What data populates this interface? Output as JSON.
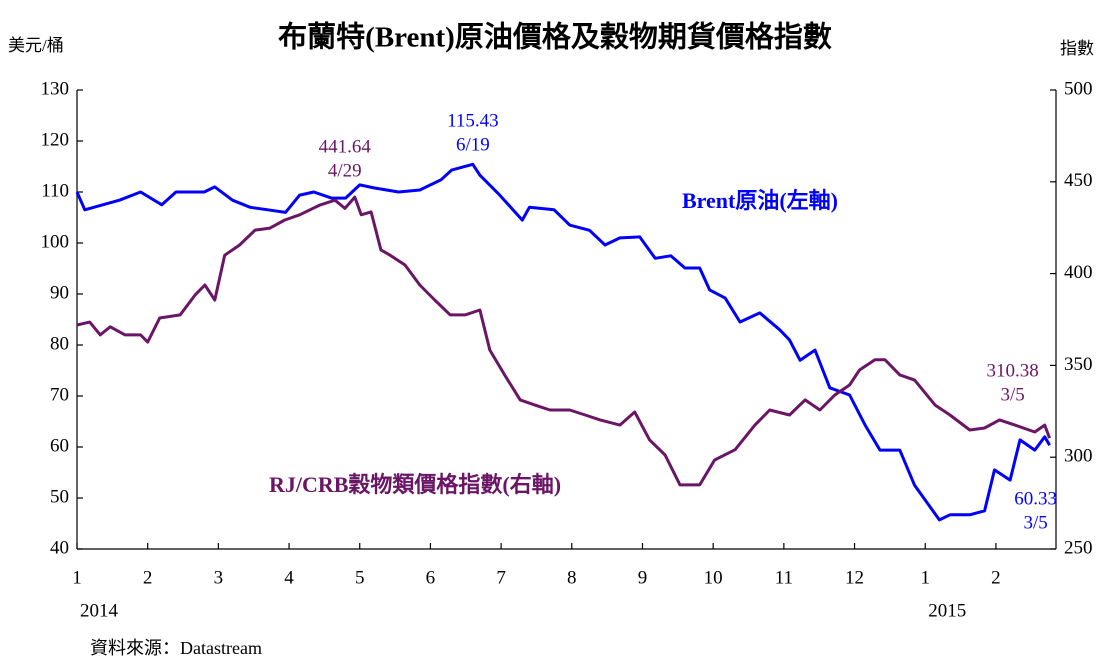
{
  "chart_data": {
    "type": "line",
    "title": "布蘭特(Brent)原油價格及穀物期貨價格指數",
    "y_axis_label": "美元/桶",
    "y2_axis_label": "指數",
    "source": "資料來源：Datastream",
    "x": [
      0,
      0.11,
      0.6,
      0.9,
      1.2,
      1.4,
      1.8,
      1.95,
      2.2,
      2.45,
      2.7,
      2.95,
      3.15,
      3.35,
      3.6,
      3.8,
      4.0,
      4.2,
      4.55,
      4.85,
      5.15,
      5.3,
      5.6,
      5.7,
      5.98,
      6.3,
      6.4,
      6.75,
      6.97,
      7.25,
      7.47,
      7.68,
      7.96,
      8.18,
      8.4,
      8.6,
      8.81,
      8.95,
      9.17,
      9.38,
      9.66,
      9.94,
      10.08,
      10.23,
      10.44,
      10.65,
      10.93,
      11.15,
      11.36,
      11.64,
      11.85,
      12.2,
      12.35,
      12.63,
      12.84,
      12.98,
      13.2,
      13.34,
      13.55,
      13.69,
      13.76
    ],
    "series": [
      {
        "name": "Brent原油(左軸)",
        "color": "#0000ff",
        "axis": "y",
        "x": [
          0,
          0.11,
          0.6,
          0.9,
          1.2,
          1.4,
          1.8,
          1.95,
          2.2,
          2.45,
          2.7,
          2.95,
          3.15,
          3.35,
          3.6,
          3.8,
          4.0,
          4.2,
          4.55,
          4.85,
          5.15,
          5.3,
          5.6,
          5.7,
          5.98,
          6.3,
          6.4,
          6.75,
          6.97,
          7.25,
          7.47,
          7.68,
          7.96,
          8.18,
          8.4,
          8.6,
          8.81,
          8.95,
          9.17,
          9.38,
          9.66,
          9.94,
          10.08,
          10.23,
          10.44,
          10.65,
          10.93,
          11.15,
          11.36,
          11.64,
          11.85,
          12.2,
          12.35,
          12.63,
          12.84,
          12.98,
          13.2,
          13.34,
          13.55,
          13.69,
          13.76
        ],
        "values": [
          110,
          106.5,
          108.4,
          110,
          107.5,
          110,
          110,
          111,
          108.4,
          107,
          106.5,
          106,
          109.4,
          110,
          108.8,
          108.8,
          111.4,
          110.8,
          110,
          110.4,
          112.4,
          114.3,
          115.43,
          113.3,
          109.4,
          104.5,
          107,
          106.5,
          103.5,
          102.5,
          99.6,
          101,
          101.2,
          97,
          97.5,
          95.1,
          95.1,
          90.8,
          89.2,
          84.5,
          86.3,
          83,
          81,
          77,
          79,
          71.6,
          70.2,
          64.3,
          59.4,
          59.4,
          52.5,
          45.7,
          46.7,
          46.7,
          47.5,
          55.5,
          53.5,
          61.4,
          59.4,
          62,
          60.33
        ]
      },
      {
        "name": "RJ/CRB穀物類價格指數(右軸)",
        "color": "#6b1566",
        "axis": "y2",
        "x": [
          0,
          0.18,
          0.33,
          0.47,
          0.68,
          0.9,
          1.0,
          1.17,
          1.46,
          1.67,
          1.81,
          1.95,
          2.09,
          2.3,
          2.52,
          2.73,
          2.94,
          3.15,
          3.44,
          3.65,
          3.79,
          3.93,
          4.02,
          4.16,
          4.3,
          4.43,
          4.64,
          4.85,
          5.06,
          5.28,
          5.49,
          5.7,
          5.84,
          6.05,
          6.27,
          6.48,
          6.69,
          6.97,
          7.19,
          7.4,
          7.68,
          7.89,
          8.1,
          8.32,
          8.53,
          8.81,
          9.02,
          9.31,
          9.59,
          9.8,
          10.08,
          10.3,
          10.51,
          10.72,
          10.93,
          11.07,
          11.29,
          11.43,
          11.64,
          11.85,
          12.14,
          12.35,
          12.63,
          12.84,
          13.05,
          13.27,
          13.55,
          13.69,
          13.76
        ],
        "values": [
          372,
          373.6,
          366.6,
          371,
          366.6,
          366.6,
          362.7,
          375.8,
          377.5,
          388.3,
          393.8,
          385.6,
          410,
          415.6,
          423.7,
          424.8,
          429.2,
          432,
          437.4,
          440,
          435.5,
          441.64,
          432,
          433.6,
          412.9,
          410,
          404.7,
          393.8,
          385.6,
          377.5,
          377.5,
          380.2,
          358.4,
          344.8,
          331.2,
          328.4,
          325.7,
          325.7,
          323,
          320.3,
          317.5,
          324.6,
          309.4,
          301.2,
          284.9,
          284.9,
          298.5,
          304.1,
          317.5,
          325.7,
          323,
          331.2,
          325.7,
          333.9,
          339.3,
          347.5,
          353.1,
          353.1,
          344.8,
          342,
          328.4,
          323,
          314.8,
          315.9,
          320.3,
          317.5,
          313.7,
          317.5,
          310.38
        ]
      }
    ],
    "annotations": [
      {
        "series": 1,
        "x": 3.93,
        "value": 441.64,
        "date": "4/29"
      },
      {
        "series": 0,
        "x": 5.6,
        "value": 115.43,
        "date": "6/19"
      },
      {
        "series": 1,
        "x": 13.76,
        "value": 310.38,
        "date": "3/5"
      },
      {
        "series": 0,
        "x": 13.76,
        "value": 60.33,
        "date": "3/5"
      }
    ],
    "xlim": [
      0,
      13.85
    ],
    "xticks": [
      {
        "value": 0,
        "label": "1"
      },
      {
        "value": 1,
        "label": "2"
      },
      {
        "value": 2,
        "label": "3"
      },
      {
        "value": 3,
        "label": "4"
      },
      {
        "value": 4,
        "label": "5"
      },
      {
        "value": 5,
        "label": "6"
      },
      {
        "value": 6,
        "label": "7"
      },
      {
        "value": 7,
        "label": "8"
      },
      {
        "value": 8,
        "label": "9"
      },
      {
        "value": 9,
        "label": "10"
      },
      {
        "value": 10,
        "label": "11"
      },
      {
        "value": 11,
        "label": "12"
      },
      {
        "value": 12,
        "label": "1"
      },
      {
        "value": 13,
        "label": "2"
      }
    ],
    "year_labels": [
      {
        "value": 0,
        "label": "2014"
      },
      {
        "value": 12,
        "label": "2015"
      }
    ],
    "ylim": [
      40,
      130
    ],
    "yticks": [
      40,
      50,
      60,
      70,
      80,
      90,
      100,
      110,
      120,
      130
    ],
    "y2lim": [
      250,
      500
    ],
    "y2ticks": [
      250,
      300,
      350,
      400,
      450,
      500
    ]
  }
}
